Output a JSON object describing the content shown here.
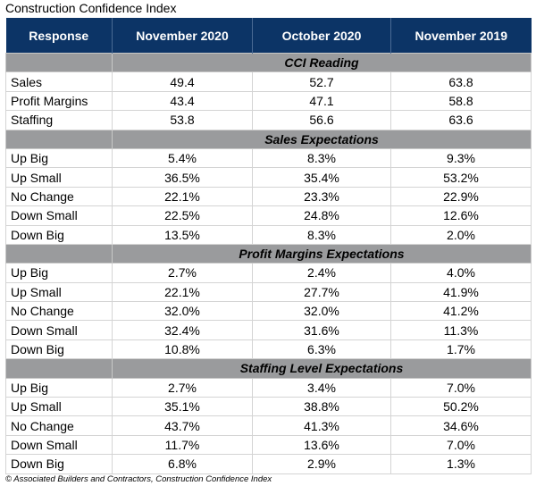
{
  "title": "Construction Confidence Index",
  "headers": [
    "Response",
    "November 2020",
    "October 2020",
    "November 2019"
  ],
  "sections": [
    {
      "name": "CCI Reading",
      "rows": [
        {
          "label": "Sales",
          "values": [
            "49.4",
            "52.7",
            "63.8"
          ]
        },
        {
          "label": "Profit Margins",
          "values": [
            "43.4",
            "47.1",
            "58.8"
          ]
        },
        {
          "label": "Staffing",
          "values": [
            "53.8",
            "56.6",
            "63.6"
          ]
        }
      ]
    },
    {
      "name": "Sales Expectations",
      "rows": [
        {
          "label": "Up Big",
          "values": [
            "5.4%",
            "8.3%",
            "9.3%"
          ]
        },
        {
          "label": "Up Small",
          "values": [
            "36.5%",
            "35.4%",
            "53.2%"
          ]
        },
        {
          "label": "No Change",
          "values": [
            "22.1%",
            "23.3%",
            "22.9%"
          ]
        },
        {
          "label": "Down Small",
          "values": [
            "22.5%",
            "24.8%",
            "12.6%"
          ]
        },
        {
          "label": "Down Big",
          "values": [
            "13.5%",
            "8.3%",
            "2.0%"
          ]
        }
      ]
    },
    {
      "name": "Profit Margins Expectations",
      "rows": [
        {
          "label": "Up Big",
          "values": [
            "2.7%",
            "2.4%",
            "4.0%"
          ]
        },
        {
          "label": "Up Small",
          "values": [
            "22.1%",
            "27.7%",
            "41.9%"
          ]
        },
        {
          "label": "No Change",
          "values": [
            "32.0%",
            "32.0%",
            "41.2%"
          ]
        },
        {
          "label": "Down Small",
          "values": [
            "32.4%",
            "31.6%",
            "11.3%"
          ]
        },
        {
          "label": "Down Big",
          "values": [
            "10.8%",
            "6.3%",
            "1.7%"
          ]
        }
      ]
    },
    {
      "name": "Staffing Level Expectations",
      "rows": [
        {
          "label": "Up Big",
          "values": [
            "2.7%",
            "3.4%",
            "7.0%"
          ]
        },
        {
          "label": "Up Small",
          "values": [
            "35.1%",
            "38.8%",
            "50.2%"
          ]
        },
        {
          "label": "No Change",
          "values": [
            "43.7%",
            "41.3%",
            "34.6%"
          ]
        },
        {
          "label": "Down Small",
          "values": [
            "11.7%",
            "13.6%",
            "7.0%"
          ]
        },
        {
          "label": "Down Big",
          "values": [
            "6.8%",
            "2.9%",
            "1.3%"
          ]
        }
      ]
    }
  ],
  "footer": "© Associated Builders and Contractors, Construction Confidence Index",
  "colors": {
    "header_bg": "#0c3466",
    "section_bg": "#9a9b9d"
  }
}
